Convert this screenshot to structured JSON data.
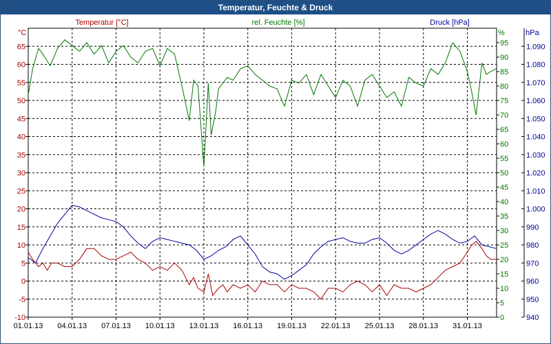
{
  "chart_data": {
    "type": "line",
    "title": "Temperatur, Feuchte & Druck",
    "x_labels": [
      "01.01.13",
      "04.01.13",
      "07.01.13",
      "10.01.13",
      "13.01.13",
      "16.01.13",
      "19.01.13",
      "22.01.13",
      "25.01.13",
      "28.01.13",
      "31.01.13"
    ],
    "x_range": [
      0,
      32
    ],
    "axes": {
      "temp": {
        "label": "Temperatur [°C]",
        "unit": "°C",
        "range": [
          -10,
          70
        ],
        "ticks": [
          -10,
          -5,
          0,
          5,
          10,
          15,
          20,
          25,
          30,
          35,
          40,
          45,
          50,
          55,
          60,
          65
        ],
        "color": "#aa0000"
      },
      "hum": {
        "label": "rel. Feuchte [%]",
        "unit": "%",
        "range": [
          0,
          100
        ],
        "ticks": [
          0,
          5,
          10,
          15,
          20,
          25,
          30,
          35,
          40,
          45,
          50,
          55,
          60,
          65,
          70,
          75,
          80,
          85,
          90,
          95
        ],
        "color": "#007700"
      },
      "press": {
        "label": "Druck [hPa]",
        "unit": "hPa",
        "range": [
          940,
          1100
        ],
        "ticks": [
          "940",
          "950",
          "960",
          "970",
          "980",
          "990",
          "1.000",
          "1.010",
          "1.020",
          "1.030",
          "1.040",
          "1.050",
          "1.060",
          "1.070",
          "1.080",
          "1.090"
        ],
        "color": "#000099"
      }
    },
    "series": [
      {
        "name": "rel. Feuchte",
        "axis": "hum",
        "color": "#007700",
        "x": [
          0,
          0.3,
          0.7,
          1,
          1.5,
          2,
          2.5,
          3,
          3.5,
          4,
          4.5,
          5,
          5.5,
          6,
          6.5,
          7,
          7.5,
          8,
          8.5,
          9,
          9.5,
          10,
          10.5,
          11,
          11.3,
          11.6,
          12,
          12.3,
          12.5,
          12.8,
          13,
          13.3,
          13.6,
          14,
          14.5,
          15,
          15.5,
          16,
          16.5,
          17,
          17.5,
          18,
          18.5,
          19,
          19.5,
          20,
          20.5,
          21,
          21.5,
          22,
          22.5,
          23,
          23.5,
          24,
          24.5,
          25,
          25.5,
          26,
          26.5,
          27,
          27.5,
          28,
          28.5,
          29,
          29.5,
          30,
          30.3,
          30.6,
          31,
          31.3,
          31.6,
          32
        ],
        "values": [
          77,
          86,
          93,
          91,
          87,
          93,
          96,
          94,
          92,
          95,
          91,
          94,
          88,
          92,
          94,
          90,
          88,
          92,
          93,
          87,
          93,
          91,
          80,
          68,
          82,
          80,
          52,
          81,
          63,
          71,
          79,
          81,
          83,
          82,
          86,
          87,
          84,
          82,
          80,
          79,
          73,
          82,
          81,
          84,
          77,
          84,
          80,
          76,
          82,
          80,
          73,
          82,
          84,
          80,
          76,
          78,
          73,
          83,
          81,
          80,
          86,
          84,
          88,
          95,
          92,
          85,
          78,
          70,
          88,
          84,
          85,
          86
        ]
      },
      {
        "name": "Druck",
        "axis": "press",
        "color": "#000099",
        "x": [
          0,
          0.5,
          1,
          1.5,
          2,
          2.5,
          3,
          3.5,
          4,
          4.5,
          5,
          5.5,
          6,
          6.5,
          7,
          7.5,
          8,
          8.5,
          9,
          9.5,
          10,
          10.5,
          11,
          11.5,
          12,
          12.5,
          13,
          13.5,
          14,
          14.5,
          15,
          15.5,
          16,
          16.5,
          17,
          17.5,
          18,
          18.5,
          19,
          19.5,
          20,
          20.5,
          21,
          21.5,
          22,
          22.5,
          23,
          23.5,
          24,
          24.5,
          25,
          25.5,
          26,
          26.5,
          27,
          27.5,
          28,
          28.5,
          29,
          29.5,
          30,
          30.5,
          31,
          31.5,
          32
        ],
        "values": [
          973,
          970,
          978,
          985,
          992,
          997,
          1002,
          1001,
          999,
          997,
          995,
          994,
          993,
          990,
          985,
          981,
          978,
          982,
          984,
          983,
          982,
          981,
          980,
          977,
          972,
          974,
          977,
          979,
          983,
          985,
          980,
          975,
          968,
          965,
          964,
          961,
          963,
          966,
          969,
          975,
          979,
          982,
          983,
          984,
          982,
          981,
          981,
          983,
          984,
          981,
          977,
          975,
          977,
          980,
          983,
          986,
          988,
          986,
          983,
          981,
          982,
          985,
          980,
          979,
          978
        ]
      },
      {
        "name": "Temperatur",
        "axis": "temp",
        "color": "#aa0000",
        "x": [
          0,
          0.3,
          0.7,
          1,
          1.3,
          1.6,
          2,
          2.5,
          3,
          3.5,
          4,
          4.5,
          5,
          5.5,
          6,
          6.5,
          7,
          7.5,
          8,
          8.5,
          9,
          9.5,
          10,
          10.5,
          11,
          11.3,
          11.6,
          12,
          12.3,
          12.6,
          13,
          13.3,
          13.6,
          14,
          14.5,
          15,
          15.5,
          16,
          16.5,
          17,
          17.5,
          18,
          18.5,
          19,
          19.5,
          20,
          20.5,
          21,
          21.5,
          22,
          22.5,
          23,
          23.5,
          24,
          24.5,
          25,
          25.5,
          26,
          26.5,
          27,
          27.5,
          28,
          28.5,
          29,
          29.5,
          30,
          30.3,
          30.6,
          31,
          31.3,
          31.6,
          32
        ],
        "values": [
          8,
          6,
          4,
          5,
          3,
          5,
          5,
          4,
          4,
          6,
          9,
          9,
          7,
          6,
          6,
          7,
          8,
          6,
          5,
          3,
          4,
          3,
          5,
          3,
          -1,
          1,
          -2,
          -3,
          2,
          -4,
          -2,
          -1,
          -3,
          -1,
          -2,
          -1,
          -3,
          0,
          -1,
          -1,
          -3,
          -1,
          -2,
          -2,
          -3,
          -5,
          -2,
          -2,
          -3,
          -1,
          0,
          -1,
          -3,
          -1,
          -4,
          -1,
          -2,
          -2,
          -3,
          -2,
          -1,
          1,
          3,
          4,
          5,
          8,
          10,
          11,
          9,
          7,
          6,
          6
        ]
      }
    ]
  }
}
